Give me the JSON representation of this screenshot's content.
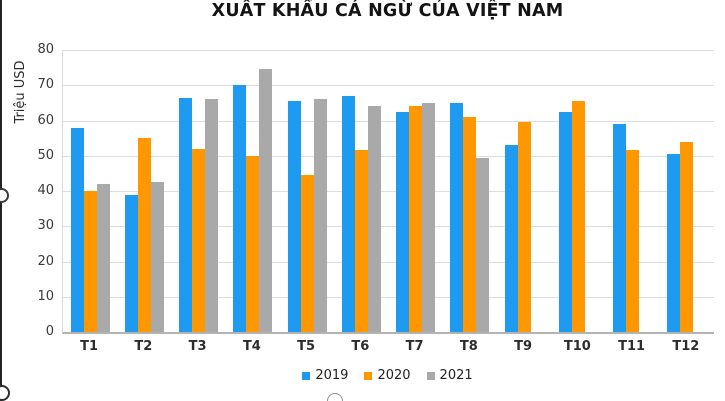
{
  "chart_data": {
    "type": "bar",
    "title": "XUẤT KHẨU CÁ NGỪ CỦA VIỆT NAM",
    "ylabel": "Triệu USD",
    "xlabel": "",
    "categories": [
      "T1",
      "T2",
      "T3",
      "T4",
      "T5",
      "T6",
      "T7",
      "T8",
      "T9",
      "T10",
      "T11",
      "T12"
    ],
    "series": [
      {
        "name": "2019",
        "color": "#1E9BF0",
        "values": [
          58,
          39,
          66.5,
          70,
          65.5,
          67,
          62.5,
          65,
          53,
          62.5,
          59,
          50.5
        ]
      },
      {
        "name": "2020",
        "color": "#FF9800",
        "values": [
          40,
          55,
          52,
          50,
          44.5,
          51.5,
          64,
          61,
          59.5,
          65.5,
          51.5,
          54
        ]
      },
      {
        "name": "2021",
        "color": "#A9A9A9",
        "values": [
          42,
          42.5,
          66,
          74.5,
          66,
          64,
          65,
          49.5,
          null,
          null,
          null,
          null
        ]
      }
    ],
    "ylim": [
      0,
      80
    ],
    "ytick_step": 10,
    "grid": true,
    "legend_position": "bottom"
  },
  "style": {
    "gridline_color": "#dedede",
    "axis_color": "#b3b3b3",
    "tick_text_color": "#3a3a3a"
  }
}
